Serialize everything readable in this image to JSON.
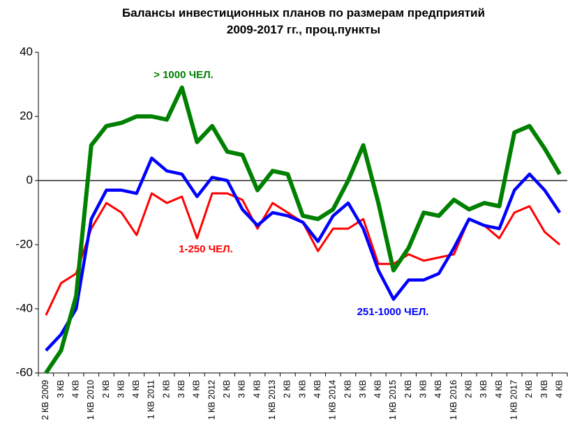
{
  "chart_data": {
    "type": "line",
    "title": "Балансы инвестиционных планов по размерам предприятий",
    "subtitle": "2009-2017  гг., проц.пункты",
    "categories": [
      "2 КВ 2009",
      "3 КВ",
      "4 КВ",
      "1 КВ 2010",
      "2 КВ",
      "3 КВ",
      "4 КВ",
      "1 КВ 2011",
      "2 КВ",
      "3 КВ",
      "4 КВ",
      "1 КВ 2012",
      "2 КВ",
      "3 КВ",
      "4 КВ",
      "1 КВ 2013",
      "2 КВ",
      "3 КВ",
      "4 КВ",
      "1 КВ 2014",
      "2 КВ",
      "3 КВ",
      "4 КВ",
      "1 КВ 2015",
      "2 КВ",
      "3 КВ",
      "4 КВ",
      "1 КВ 2016",
      "2 КВ",
      "3 КВ",
      "4 КВ",
      "1 КВ 2017",
      "2 КВ",
      "3 КВ",
      "4 КВ"
    ],
    "series": [
      {
        "name": "1-250 ЧЕЛ.",
        "color": "#ff0000",
        "values": [
          -42,
          -32,
          -29,
          -15,
          -7,
          -10,
          -17,
          -4,
          -7,
          -5,
          -18,
          -4,
          -4,
          -6,
          -15,
          -7,
          -10,
          -13,
          -22,
          -15,
          -15,
          -12,
          -26,
          -26,
          -23,
          -25,
          -24,
          -23,
          -12,
          -14,
          -18,
          -10,
          -8,
          -16,
          -20
        ]
      },
      {
        "name": "251-1000  ЧЕЛ.",
        "color": "#0000ff",
        "values": [
          -53,
          -48,
          -40,
          -12,
          -3,
          -3,
          -4,
          7,
          3,
          2,
          -5,
          1,
          0,
          -9,
          -14,
          -10,
          -11,
          -13,
          -19,
          -11,
          -7,
          -15,
          -28,
          -37,
          -31,
          -31,
          -29,
          -21,
          -12,
          -14,
          -15,
          -3,
          2,
          -3,
          -10
        ]
      },
      {
        "name": "> 1000 ЧЕЛ.",
        "color": "#008000",
        "values": [
          -60,
          -53,
          -36,
          11,
          17,
          18,
          20,
          20,
          19,
          29,
          12,
          17,
          9,
          8,
          -3,
          3,
          2,
          -11,
          -12,
          -9,
          0,
          11,
          -7,
          -28,
          -21,
          -10,
          -11,
          -6,
          -9,
          -7,
          -8,
          15,
          17,
          10,
          2
        ]
      }
    ],
    "ylim": [
      -60,
      40
    ],
    "yticks": [
      -60,
      -40,
      -20,
      0,
      20,
      40
    ],
    "grid": false
  }
}
